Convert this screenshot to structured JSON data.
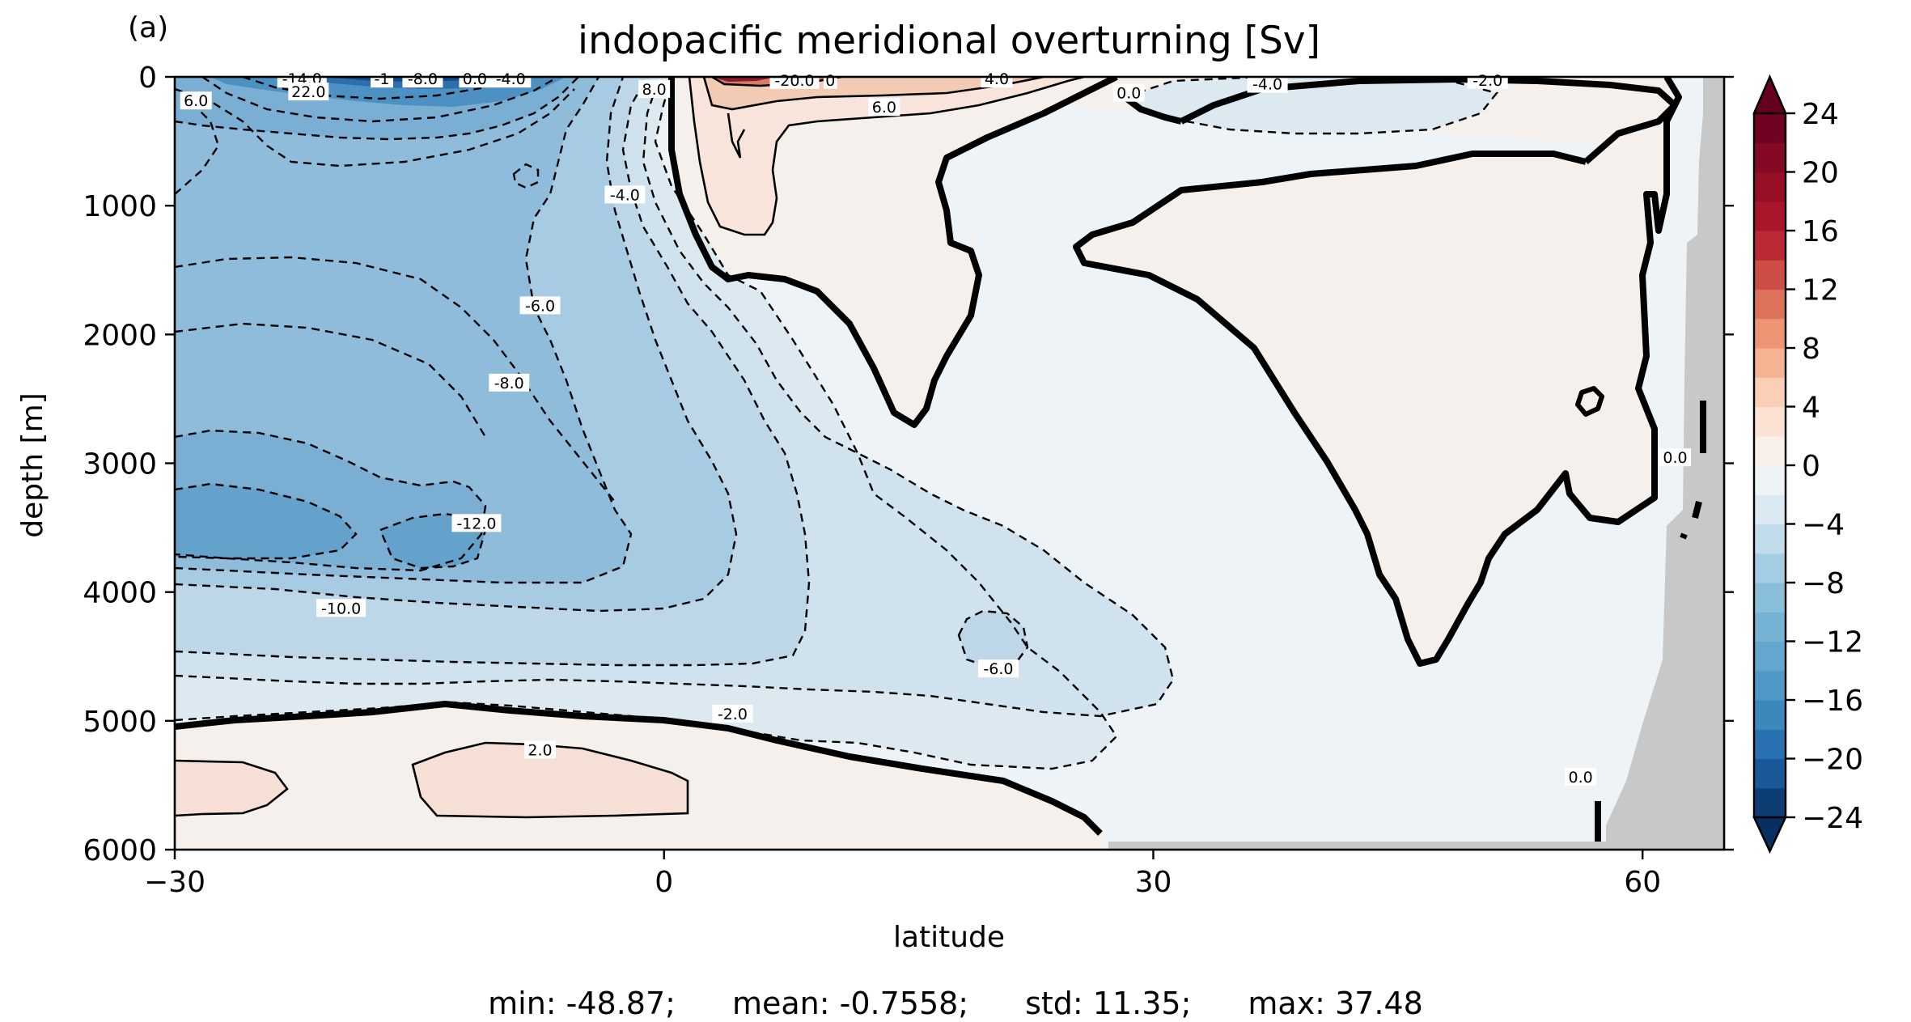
{
  "panel_label": "(a)",
  "chart_data": {
    "type": "contour",
    "title": "indopacific meridional overturning [Sv]",
    "xlabel": "latitude",
    "ylabel": "depth [m]",
    "xlim": [
      -30,
      65
    ],
    "ylim": [
      6000,
      0
    ],
    "x_ticks": [
      -30,
      0,
      30,
      60
    ],
    "x_tick_labels": [
      "−30",
      "0",
      "30",
      "60"
    ],
    "y_ticks": [
      0,
      1000,
      2000,
      3000,
      4000,
      5000,
      6000
    ],
    "y_tick_labels": [
      "0",
      "1000",
      "2000",
      "3000",
      "4000",
      "5000",
      "6000"
    ],
    "colorbar": {
      "cmap": "RdBu_r",
      "range": [
        -24,
        24
      ],
      "step": 2,
      "extend": "both",
      "ticks": [
        24,
        20,
        16,
        12,
        8,
        4,
        0,
        -4,
        -8,
        -12,
        -16,
        -20,
        -24
      ],
      "tick_labels": [
        "24",
        "20",
        "16",
        "12",
        "8",
        "4",
        "0",
        "−4",
        "−8",
        "−12",
        "−16",
        "−20",
        "−24"
      ]
    },
    "contour_labels": [
      {
        "text": "-14.0",
        "lat": -22.2,
        "depth": 20
      },
      {
        "text": "-1",
        "lat": -17.3,
        "depth": 20
      },
      {
        "text": "-8.0",
        "lat": -14.8,
        "depth": 20
      },
      {
        "text": "0.0",
        "lat": -11.6,
        "depth": 20
      },
      {
        "text": "-4.0",
        "lat": -9.4,
        "depth": 20
      },
      {
        "text": "-20.0",
        "lat": 8.0,
        "depth": 30
      },
      {
        "text": "0",
        "lat": 10.2,
        "depth": 30
      },
      {
        "text": "4.0",
        "lat": 20.4,
        "depth": 20
      },
      {
        "text": "6.0",
        "lat": 13.5,
        "depth": 240
      },
      {
        "text": "0.0",
        "lat": 28.5,
        "depth": 130
      },
      {
        "text": "-4.0",
        "lat": 37.0,
        "depth": 60
      },
      {
        "text": "-2.0",
        "lat": 50.5,
        "depth": 30
      },
      {
        "text": "6.0",
        "lat": -28.7,
        "depth": 190
      },
      {
        "text": "22.0",
        "lat": -21.8,
        "depth": 120
      },
      {
        "text": "8.0",
        "lat": -0.6,
        "depth": 100
      },
      {
        "text": "-4.0",
        "lat": -2.4,
        "depth": 920
      },
      {
        "text": "-6.0",
        "lat": -7.6,
        "depth": 1780
      },
      {
        "text": "-8.0",
        "lat": -9.5,
        "depth": 2380
      },
      {
        "text": "-12.0",
        "lat": -11.5,
        "depth": 3470
      },
      {
        "text": "-10.0",
        "lat": -19.8,
        "depth": 4130
      },
      {
        "text": "-6.0",
        "lat": 20.5,
        "depth": 4600
      },
      {
        "text": "-2.0",
        "lat": 4.2,
        "depth": 4950
      },
      {
        "text": "2.0",
        "lat": -7.6,
        "depth": 5230
      },
      {
        "text": "0.0",
        "lat": 56.2,
        "depth": 5440
      },
      {
        "text": "0.0",
        "lat": 62.0,
        "depth": 2960
      }
    ],
    "stats": {
      "min": "min: -48.87;",
      "mean": "mean: -0.7558;",
      "std": "std: 11.35;",
      "max": "max: 37.48"
    }
  }
}
